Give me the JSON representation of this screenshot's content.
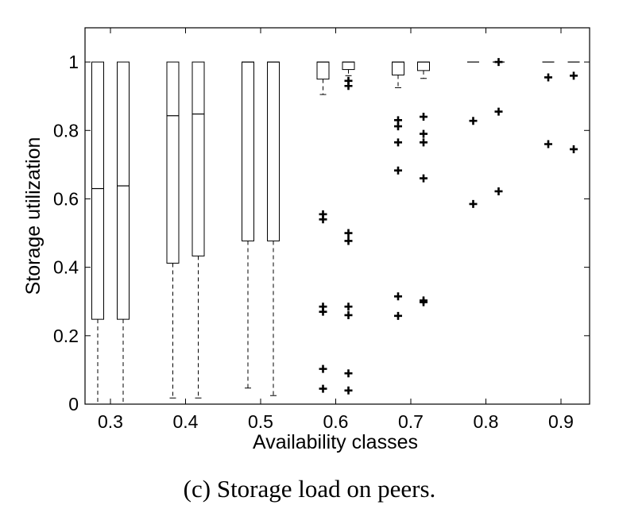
{
  "caption": "(c) Storage load on peers.",
  "chart_data": {
    "type": "boxplot",
    "xlabel": "Availability classes",
    "ylabel": "Storage utilization",
    "ylim": [
      0,
      1.1
    ],
    "yticks": [
      0,
      0.2,
      0.4,
      0.6,
      0.8,
      1
    ],
    "ytick_labels": [
      "0",
      "0.2",
      "0.4",
      "0.6",
      "0.8",
      "1"
    ],
    "categories": [
      "0.3",
      "0.4",
      "0.5",
      "0.6",
      "0.7",
      "0.8",
      "0.9"
    ],
    "grid": false,
    "boxes": [
      {
        "class": "0.3",
        "q1": 0.248,
        "median": 0.63,
        "q3": 1.0,
        "whisker_low": 0.0,
        "whisker_high": 1.0,
        "outliers": []
      },
      {
        "class": "0.3",
        "q1": 0.248,
        "median": 0.638,
        "q3": 1.0,
        "whisker_low": 0.0,
        "whisker_high": 1.0,
        "outliers": []
      },
      {
        "class": "0.4",
        "q1": 0.412,
        "median": 0.843,
        "q3": 1.0,
        "whisker_low": 0.018,
        "whisker_high": 1.0,
        "outliers": []
      },
      {
        "class": "0.4",
        "q1": 0.433,
        "median": 0.848,
        "q3": 1.0,
        "whisker_low": 0.018,
        "whisker_high": 1.0,
        "outliers": []
      },
      {
        "class": "0.5",
        "q1": 0.477,
        "median": 1.0,
        "q3": 1.0,
        "whisker_low": 0.047,
        "whisker_high": 1.0,
        "outliers": []
      },
      {
        "class": "0.5",
        "q1": 0.477,
        "median": 1.0,
        "q3": 1.0,
        "whisker_low": 0.025,
        "whisker_high": 1.0,
        "outliers": []
      },
      {
        "class": "0.6",
        "q1": 0.95,
        "median": 1.0,
        "q3": 1.0,
        "whisker_low": 0.905,
        "whisker_high": 1.0,
        "outliers": [
          0.555,
          0.54,
          0.285,
          0.27,
          0.103,
          0.045
        ]
      },
      {
        "class": "0.6",
        "q1": 0.978,
        "median": 1.0,
        "q3": 1.0,
        "whisker_low": 0.96,
        "whisker_high": 1.0,
        "outliers": [
          0.945,
          0.93,
          0.5,
          0.477,
          0.285,
          0.26,
          0.09,
          0.04
        ]
      },
      {
        "class": "0.7",
        "q1": 0.962,
        "median": 1.0,
        "q3": 1.0,
        "whisker_low": 0.925,
        "whisker_high": 1.0,
        "outliers": [
          0.83,
          0.812,
          0.765,
          0.683,
          0.315,
          0.258
        ]
      },
      {
        "class": "0.7",
        "q1": 0.975,
        "median": 1.0,
        "q3": 1.0,
        "whisker_low": 0.952,
        "whisker_high": 1.0,
        "outliers": [
          0.84,
          0.79,
          0.765,
          0.66,
          0.303,
          0.298
        ]
      },
      {
        "class": "0.8",
        "q1": 1.0,
        "median": 1.0,
        "q3": 1.0,
        "whisker_low": 1.0,
        "whisker_high": 1.0,
        "outliers": [
          0.828,
          0.585
        ]
      },
      {
        "class": "0.8",
        "q1": 1.0,
        "median": 1.0,
        "q3": 1.0,
        "whisker_low": 1.0,
        "whisker_high": 1.0,
        "outliers": [
          1.0,
          0.855,
          0.622
        ]
      },
      {
        "class": "0.9",
        "q1": 1.0,
        "median": 1.0,
        "q3": 1.0,
        "whisker_low": 1.0,
        "whisker_high": 1.0,
        "outliers": [
          0.955,
          0.76
        ]
      },
      {
        "class": "0.9",
        "q1": 1.0,
        "median": 1.0,
        "q3": 1.0,
        "whisker_low": 1.0,
        "whisker_high": 1.0,
        "outliers": [
          0.96,
          0.745
        ]
      }
    ]
  }
}
